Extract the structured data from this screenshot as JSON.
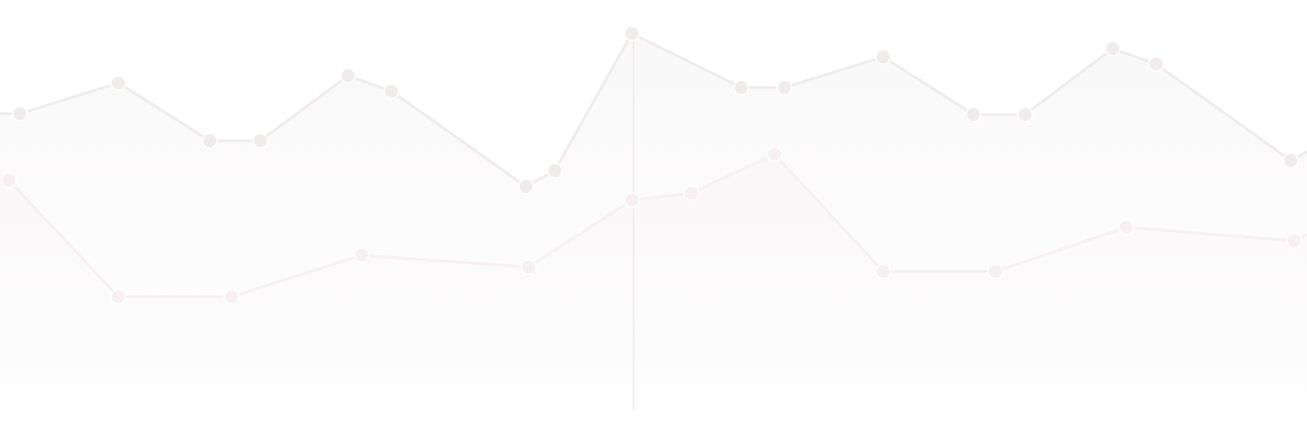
{
  "chart_data": {
    "type": "area",
    "title": "",
    "xlabel": "",
    "ylabel": "",
    "grid": false,
    "legend": "none",
    "series": [
      {
        "color": "#f0ecec",
        "x": [
          22,
          131,
          232,
          288,
          385,
          433,
          582,
          614,
          699,
          820,
          868,
          977,
          1077,
          1134,
          1231,
          1279,
          1428,
          1446
        ],
        "values": [
          126,
          92,
          156,
          156,
          84,
          101,
          207,
          189,
          37,
          97,
          97,
          63,
          127,
          127,
          54,
          71,
          178,
          168
        ],
        "fill": {
          "start_opacity": 0.35,
          "end_opacity": 0.0
        }
      },
      {
        "color": "#f6f0f3",
        "x": [
          10,
          131,
          256,
          400,
          585,
          699,
          765,
          857,
          977,
          1101,
          1246,
          1432,
          1446
        ],
        "values": [
          200,
          329,
          329,
          283,
          296,
          222,
          214,
          171,
          301,
          301,
          252,
          267,
          260
        ],
        "fill": {
          "start_opacity": 0.35,
          "end_opacity": 0.0
        }
      }
    ],
    "crosshair": {
      "x": 701,
      "color": "#f2eded"
    }
  }
}
